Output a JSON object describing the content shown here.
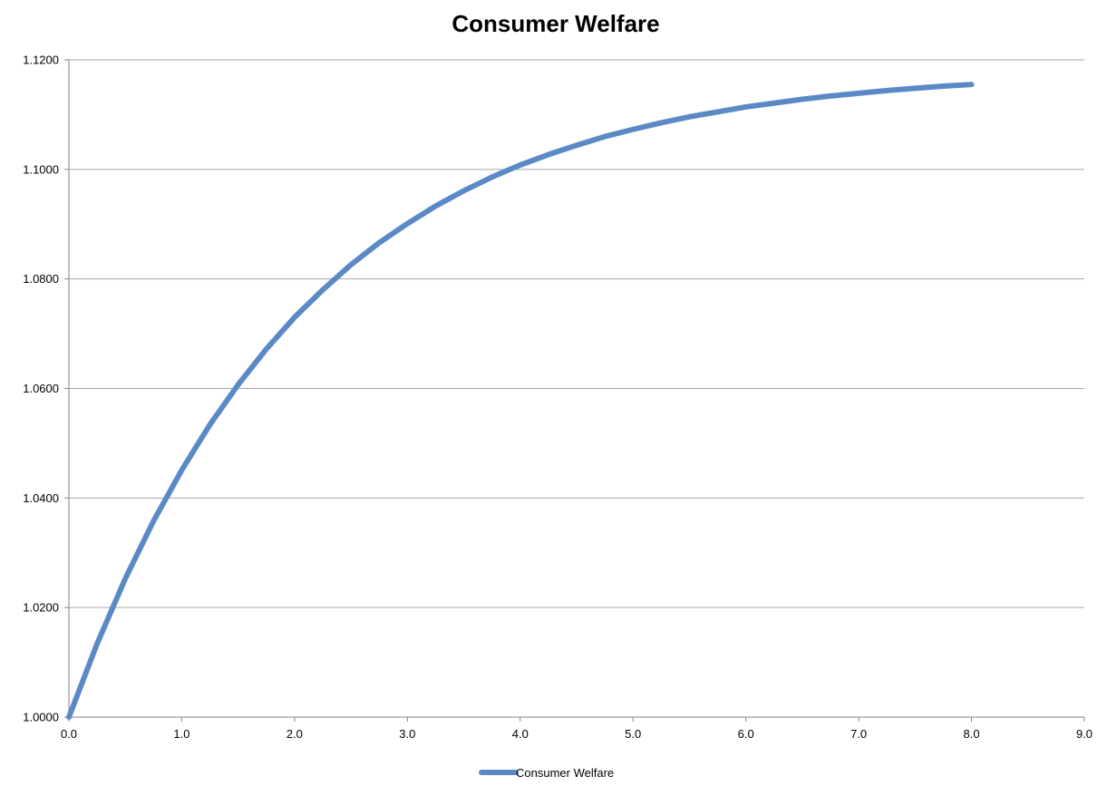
{
  "chart_data": {
    "type": "line",
    "title": "Consumer Welfare",
    "xlabel": "",
    "ylabel": "",
    "xlim": [
      0,
      9
    ],
    "ylim": [
      1.0,
      1.12
    ],
    "x_ticks": [
      "0.0",
      "1.0",
      "2.0",
      "3.0",
      "4.0",
      "5.0",
      "6.0",
      "7.0",
      "8.0",
      "9.0"
    ],
    "y_ticks": [
      "1.0000",
      "1.0200",
      "1.0400",
      "1.0600",
      "1.0800",
      "1.1000",
      "1.1200"
    ],
    "grid": "horizontal",
    "legend_position": "bottom",
    "series": [
      {
        "name": "Consumer Welfare",
        "color": "#5a8ac6",
        "x": [
          0.0,
          0.25,
          0.5,
          0.75,
          1.0,
          1.25,
          1.5,
          1.75,
          2.0,
          2.25,
          2.5,
          2.75,
          3.0,
          3.25,
          3.5,
          3.75,
          4.0,
          4.25,
          4.5,
          4.75,
          5.0,
          5.25,
          5.5,
          5.75,
          6.0,
          6.25,
          6.5,
          6.75,
          7.0,
          7.25,
          7.5,
          7.75,
          8.0
        ],
        "values": [
          1.0,
          1.0134,
          1.0253,
          1.0358,
          1.0451,
          1.0534,
          1.0607,
          1.0672,
          1.073,
          1.078,
          1.0826,
          1.0866,
          1.0901,
          1.0933,
          1.0961,
          1.0986,
          1.1008,
          1.1027,
          1.1044,
          1.106,
          1.1073,
          1.1085,
          1.1096,
          1.1105,
          1.1114,
          1.1121,
          1.1128,
          1.1134,
          1.1139,
          1.1144,
          1.1148,
          1.1152,
          1.1155
        ]
      }
    ]
  }
}
